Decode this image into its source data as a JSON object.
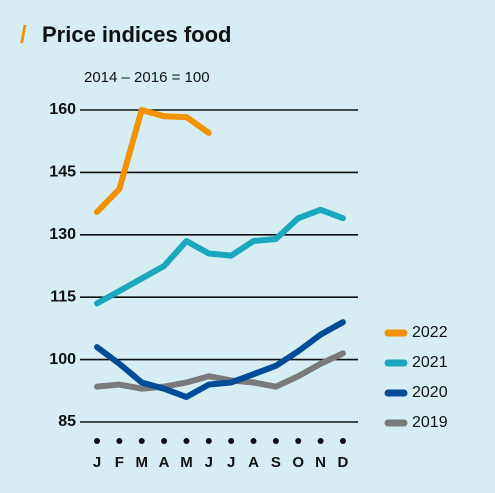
{
  "chart_data": {
    "type": "line",
    "title": "Price indices food",
    "subtitle": "2014 – 2016 = 100",
    "categories": [
      "J",
      "F",
      "M",
      "A",
      "M",
      "J",
      "J",
      "A",
      "S",
      "O",
      "N",
      "D"
    ],
    "ylim": [
      85,
      160
    ],
    "yticks": [
      85,
      100,
      115,
      130,
      145,
      160
    ],
    "grid": true,
    "legend": "right",
    "series": [
      {
        "name": "2022",
        "color": "#f39200",
        "values": [
          135.5,
          141,
          160,
          158.5,
          158.3,
          154.5,
          null,
          null,
          null,
          null,
          null,
          null
        ]
      },
      {
        "name": "2021",
        "color": "#1ba8bd",
        "values": [
          113.5,
          116.5,
          119.5,
          122.5,
          128.5,
          125.5,
          125,
          128.5,
          129,
          134,
          136,
          134
        ]
      },
      {
        "name": "2020",
        "color": "#004c97",
        "values": [
          103,
          99,
          94.5,
          93,
          91,
          94,
          94.5,
          96.5,
          98.5,
          102,
          106,
          109
        ]
      },
      {
        "name": "2019",
        "color": "#7a7a7a",
        "values": [
          93.5,
          94,
          93,
          93.5,
          94.5,
          96,
          95,
          94.5,
          93.5,
          96,
          99,
          101.5
        ]
      }
    ]
  }
}
